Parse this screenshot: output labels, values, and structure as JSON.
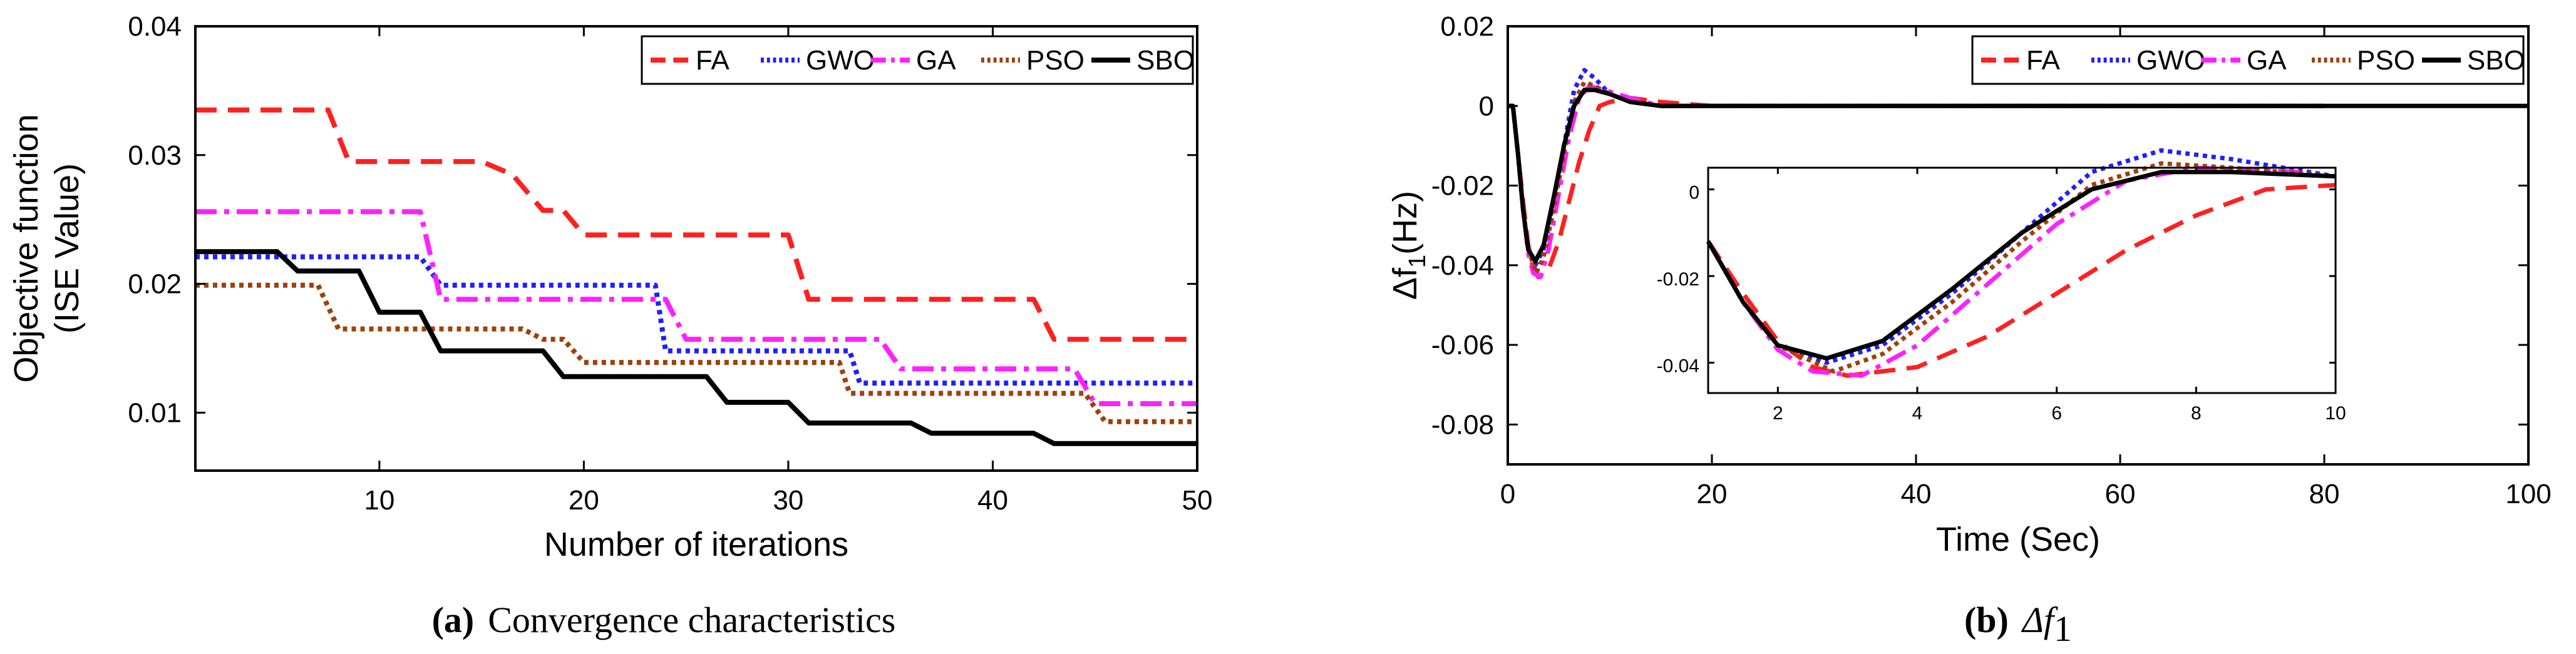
{
  "colors": {
    "FA": "#ff2020",
    "GWO": "#1f1fff",
    "GA": "#ff20ff",
    "PSO": "#a0400a",
    "SBO": "#000000"
  },
  "chart_data": [
    {
      "type": "line",
      "panel": "a",
      "caption_label": "(a)",
      "caption_text": "Convergence characteristics",
      "xlabel": "Number of iterations",
      "ylabel_line1": "Objective function",
      "ylabel_line2": "(ISE Value)",
      "xlim": [
        1,
        50
      ],
      "ylim": [
        0.0055,
        0.04
      ],
      "xticks": [
        10,
        20,
        30,
        40,
        50
      ],
      "yticks": [
        0.01,
        0.02,
        0.03,
        0.04
      ],
      "xtick_labels": [
        "10",
        "20",
        "30",
        "40",
        "50"
      ],
      "ytick_labels": [
        "0.01",
        "0.02",
        "0.03",
        "0.04"
      ],
      "legend": [
        "FA",
        "GWO",
        "GA",
        "PSO",
        "SBO"
      ],
      "legend_position": "top-right",
      "series": [
        {
          "name": "FA",
          "style": "dashed",
          "x": [
            1,
            7.5,
            8.5,
            15,
            16.5,
            18,
            19,
            20,
            30,
            31,
            42,
            43,
            50
          ],
          "y": [
            0.0335,
            0.0335,
            0.0295,
            0.0295,
            0.0285,
            0.0257,
            0.0257,
            0.0238,
            0.0238,
            0.0188,
            0.0188,
            0.0157,
            0.0157
          ]
        },
        {
          "name": "GWO",
          "style": "dotted",
          "x": [
            1,
            12,
            13,
            23.5,
            24,
            33,
            33.5,
            50
          ],
          "y": [
            0.0221,
            0.0221,
            0.0199,
            0.0199,
            0.0148,
            0.0148,
            0.0123,
            0.0123
          ]
        },
        {
          "name": "GA",
          "style": "dashdot",
          "x": [
            1,
            12,
            13,
            24,
            25,
            34.5,
            35.5,
            44,
            45,
            50
          ],
          "y": [
            0.0256,
            0.0256,
            0.0188,
            0.0188,
            0.0157,
            0.0157,
            0.0134,
            0.0134,
            0.0107,
            0.0107
          ]
        },
        {
          "name": "PSO",
          "style": "dotted",
          "x": [
            1,
            7,
            8,
            17,
            18,
            19,
            20,
            32.5,
            33,
            44.5,
            45.5,
            50
          ],
          "y": [
            0.0199,
            0.0199,
            0.0165,
            0.0165,
            0.0157,
            0.0157,
            0.0139,
            0.0139,
            0.0115,
            0.0115,
            0.0093,
            0.0093
          ]
        },
        {
          "name": "SBO",
          "style": "solid",
          "x": [
            1,
            5,
            6,
            9,
            10,
            12,
            13,
            18,
            19,
            26,
            27,
            30,
            31,
            36,
            37,
            42,
            43,
            50
          ],
          "y": [
            0.0225,
            0.0225,
            0.021,
            0.021,
            0.0178,
            0.0178,
            0.0148,
            0.0148,
            0.0128,
            0.0128,
            0.0108,
            0.0108,
            0.0092,
            0.0092,
            0.0084,
            0.0084,
            0.0076,
            0.0076
          ]
        }
      ]
    },
    {
      "type": "line",
      "panel": "b",
      "caption_label": "(b)",
      "caption_text": "Δf",
      "caption_sub": "1",
      "xlabel": "Time (Sec)",
      "ylabel_main": "Δf",
      "ylabel_sub": "1",
      "ylabel_unit": "(Hz)",
      "xlim": [
        0,
        100
      ],
      "ylim": [
        -0.09,
        0.02
      ],
      "xticks": [
        0,
        20,
        40,
        60,
        80,
        100
      ],
      "yticks": [
        0.02,
        0,
        -0.02,
        -0.04,
        -0.06,
        -0.08
      ],
      "xtick_labels": [
        "0",
        "20",
        "40",
        "60",
        "80",
        "100"
      ],
      "ytick_labels": [
        "0.02",
        "0",
        "-0.02",
        "-0.04",
        "-0.06",
        "-0.08"
      ],
      "legend": [
        "FA",
        "GWO",
        "GA",
        "PSO",
        "SBO"
      ],
      "legend_position": "top-right",
      "series": [
        {
          "name": "FA",
          "style": "dashed",
          "x": [
            0,
            0.5,
            1,
            1.5,
            2,
            2.5,
            3,
            4,
            5,
            6,
            7,
            8,
            9,
            10,
            12,
            15,
            20,
            30,
            80
          ],
          "y": [
            0,
            0,
            -0.012,
            -0.024,
            -0.035,
            -0.041,
            -0.043,
            -0.041,
            -0.034,
            -0.024,
            -0.014,
            -0.006,
            0,
            0.001,
            0.002,
            0.001,
            0,
            0,
            0
          ]
        },
        {
          "name": "GWO",
          "style": "dotted",
          "x": [
            0,
            0.5,
            1,
            1.5,
            2,
            2.7,
            3.5,
            4.5,
            5.5,
            6.5,
            7.5,
            8.5,
            10,
            12,
            15,
            20,
            80
          ],
          "y": [
            0,
            0,
            -0.012,
            -0.026,
            -0.036,
            -0.04,
            -0.036,
            -0.024,
            -0.01,
            0.004,
            0.009,
            0.007,
            0.003,
            0.001,
            0,
            0,
            0
          ]
        },
        {
          "name": "GA",
          "style": "dashdot",
          "x": [
            0,
            0.5,
            1,
            1.5,
            2,
            2.5,
            3.2,
            4,
            5,
            6,
            7,
            8,
            9.5,
            12,
            15,
            20,
            80
          ],
          "y": [
            0,
            0,
            -0.012,
            -0.026,
            -0.037,
            -0.042,
            -0.043,
            -0.036,
            -0.022,
            -0.008,
            0.002,
            0.005,
            0.004,
            0.002,
            0,
            0,
            0
          ]
        },
        {
          "name": "PSO",
          "style": "dotted",
          "x": [
            0,
            0.5,
            1,
            1.5,
            2,
            2.8,
            3.5,
            4.5,
            5.5,
            6.5,
            7.5,
            8.5,
            10,
            12,
            15,
            20,
            80
          ],
          "y": [
            0,
            0,
            -0.012,
            -0.026,
            -0.036,
            -0.042,
            -0.038,
            -0.026,
            -0.012,
            0.001,
            0.006,
            0.005,
            0.003,
            0.001,
            0,
            0,
            0
          ]
        },
        {
          "name": "SBO",
          "style": "solid",
          "x": [
            0,
            0.5,
            1,
            1.5,
            2,
            2.7,
            3.5,
            4.5,
            5.5,
            6.5,
            7.5,
            8.5,
            10,
            12,
            15,
            20,
            80,
            100
          ],
          "y": [
            0,
            0,
            -0.012,
            -0.026,
            -0.036,
            -0.039,
            -0.035,
            -0.023,
            -0.01,
            0,
            0.004,
            0.004,
            0.003,
            0.001,
            0,
            0,
            0,
            0
          ]
        }
      ],
      "inset": {
        "xlim": [
          1,
          10
        ],
        "ylim": [
          -0.047,
          0.005
        ],
        "xticks": [
          2,
          4,
          6,
          8,
          10
        ],
        "yticks": [
          0,
          -0.02,
          -0.04
        ],
        "xtick_labels": [
          "2",
          "4",
          "6",
          "8",
          "10"
        ],
        "ytick_labels": [
          "0",
          "-0.02",
          "-0.04"
        ]
      }
    }
  ]
}
